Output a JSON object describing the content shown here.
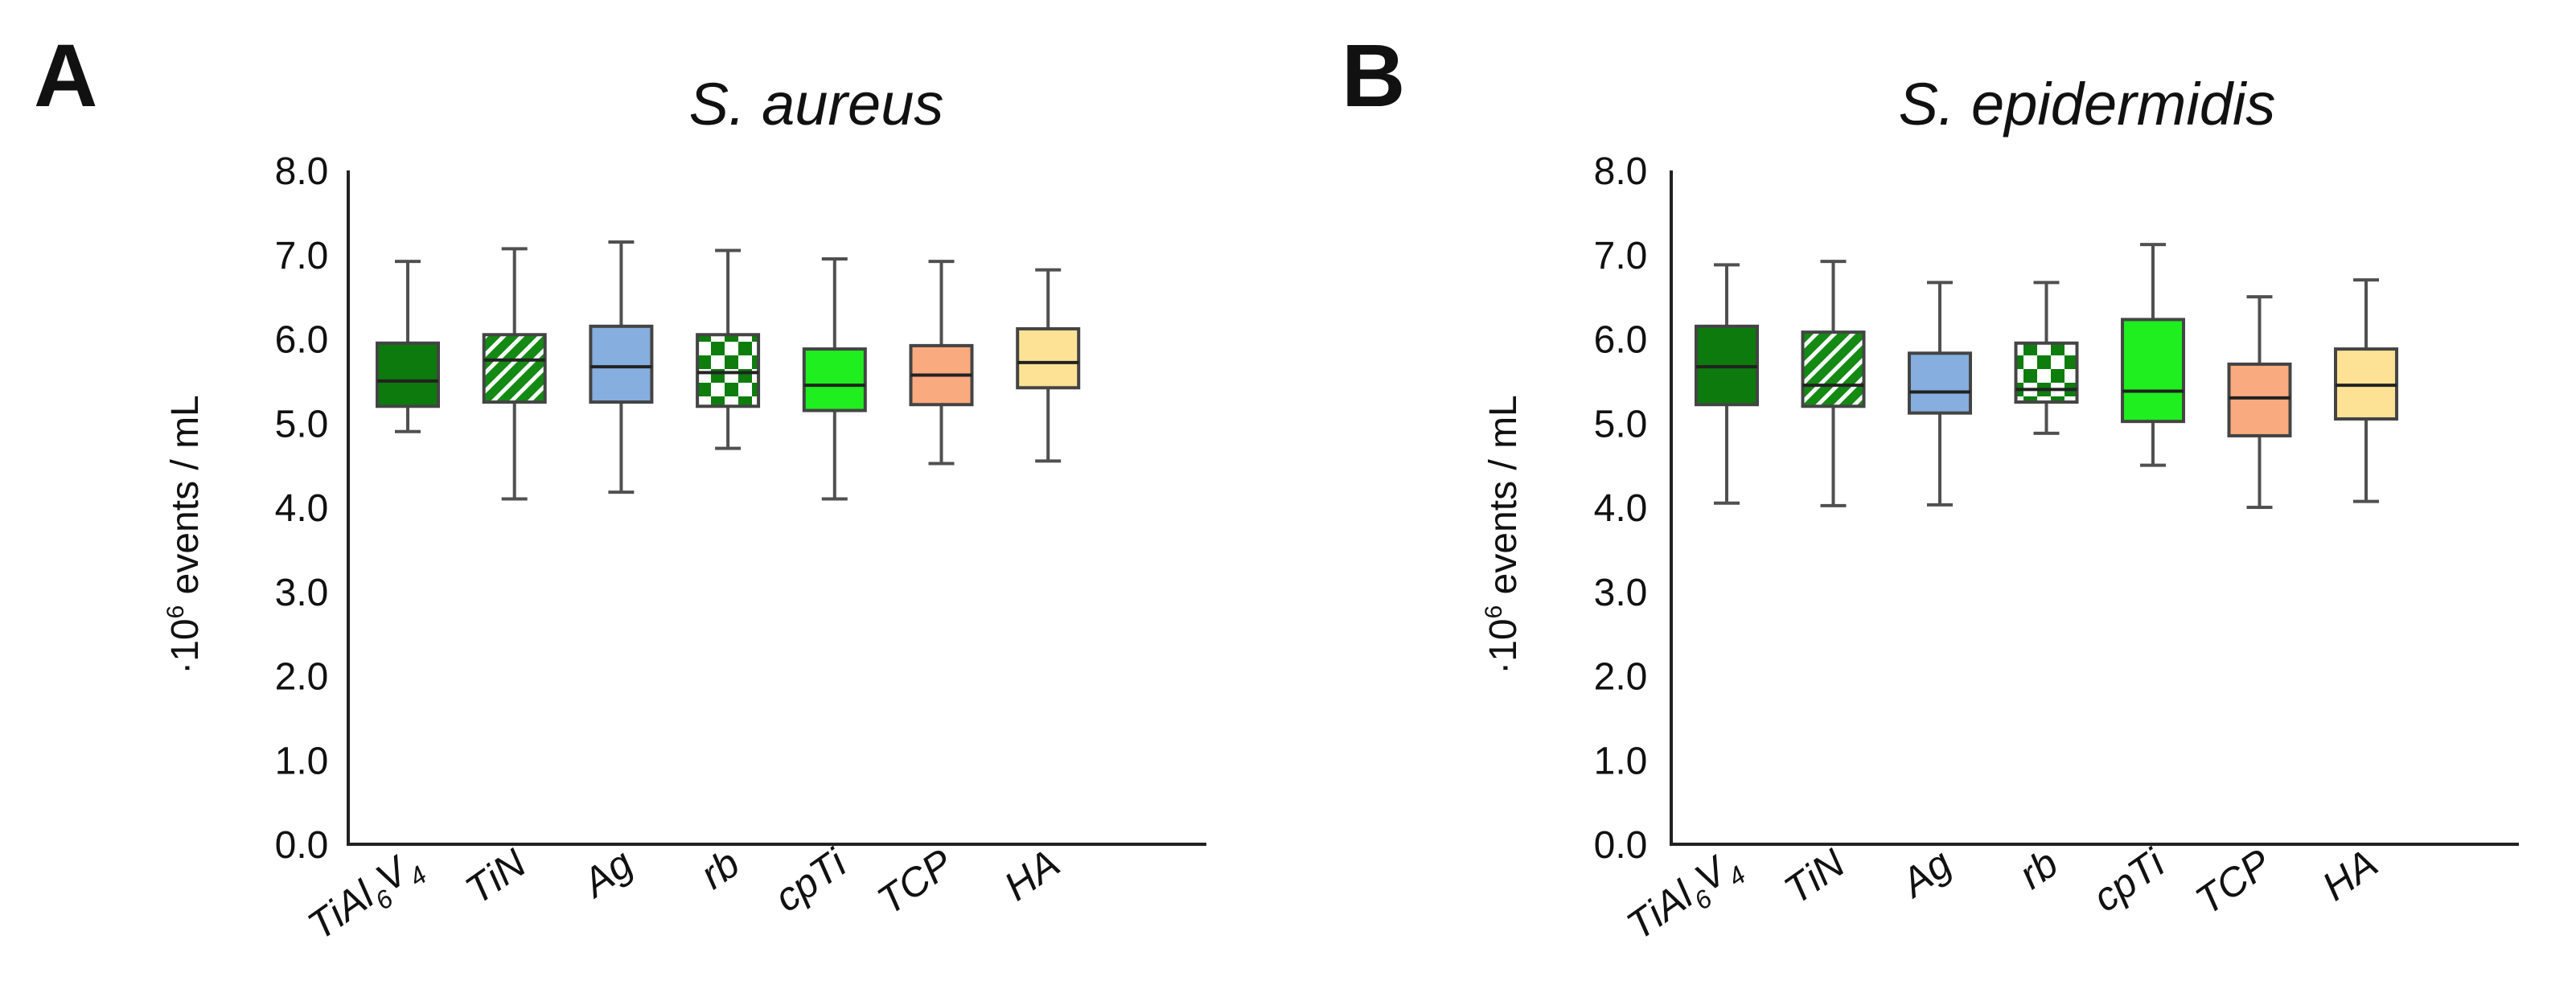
{
  "panels": [
    {
      "letter": "A"
    },
    {
      "letter": "B"
    }
  ],
  "chart_data": [
    {
      "type": "box",
      "panel": "A",
      "title": "S. aureus",
      "ylabel_prefix": "·10",
      "ylabel_sup": "6",
      "ylabel_suffix": " events / mL",
      "ylim": [
        0,
        8
      ],
      "yticks": [
        "0.0",
        "1.0",
        "2.0",
        "3.0",
        "4.0",
        "5.0",
        "6.0",
        "7.0",
        "8.0"
      ],
      "categories": [
        {
          "label": "TiAl",
          "sub": "6",
          "label2": "V",
          "sub2": "4"
        },
        {
          "label": "TiN"
        },
        {
          "label": "Ag"
        },
        {
          "label": "rb"
        },
        {
          "label": "cpTi"
        },
        {
          "label": "TCP"
        },
        {
          "label": "HA"
        }
      ],
      "boxes": [
        {
          "min": 4.9,
          "q1": 5.2,
          "median": 5.5,
          "q3": 5.95,
          "max": 6.92,
          "color": "#0d7a0d",
          "pattern": "solid"
        },
        {
          "min": 4.1,
          "q1": 5.25,
          "median": 5.75,
          "q3": 6.05,
          "max": 7.07,
          "color": "#148a14",
          "pattern": "diagonal"
        },
        {
          "min": 4.18,
          "q1": 5.25,
          "median": 5.67,
          "q3": 6.15,
          "max": 7.15,
          "color": "#86aede",
          "pattern": "solid"
        },
        {
          "min": 4.7,
          "q1": 5.2,
          "median": 5.6,
          "q3": 6.05,
          "max": 7.05,
          "color": "#0e7d0e",
          "pattern": "checker"
        },
        {
          "min": 4.1,
          "q1": 5.15,
          "median": 5.45,
          "q3": 5.88,
          "max": 6.95,
          "color": "#1fee1f",
          "pattern": "solid"
        },
        {
          "min": 4.52,
          "q1": 5.22,
          "median": 5.57,
          "q3": 5.92,
          "max": 6.92,
          "color": "#f9aa7f",
          "pattern": "solid"
        },
        {
          "min": 4.55,
          "q1": 5.42,
          "median": 5.72,
          "q3": 6.12,
          "max": 6.82,
          "color": "#fde296",
          "pattern": "solid"
        }
      ]
    },
    {
      "type": "box",
      "panel": "B",
      "title": "S. epidermidis",
      "ylabel_prefix": "·10",
      "ylabel_sup": "6",
      "ylabel_suffix": " events / mL",
      "ylim": [
        0,
        8
      ],
      "yticks": [
        "0.0",
        "1.0",
        "2.0",
        "3.0",
        "4.0",
        "5.0",
        "6.0",
        "7.0",
        "8.0"
      ],
      "categories": [
        {
          "label": "TiAl",
          "sub": "6",
          "label2": "V",
          "sub2": "4"
        },
        {
          "label": "TiN"
        },
        {
          "label": "Ag"
        },
        {
          "label": "rb"
        },
        {
          "label": "cpTi"
        },
        {
          "label": "TCP"
        },
        {
          "label": "HA"
        }
      ],
      "boxes": [
        {
          "min": 4.05,
          "q1": 5.22,
          "median": 5.67,
          "q3": 6.15,
          "max": 6.88,
          "color": "#0d7a0d",
          "pattern": "solid"
        },
        {
          "min": 4.02,
          "q1": 5.2,
          "median": 5.45,
          "q3": 6.08,
          "max": 6.92,
          "color": "#148a14",
          "pattern": "diagonal"
        },
        {
          "min": 4.03,
          "q1": 5.12,
          "median": 5.37,
          "q3": 5.83,
          "max": 6.67,
          "color": "#86aede",
          "pattern": "solid"
        },
        {
          "min": 4.88,
          "q1": 5.25,
          "median": 5.4,
          "q3": 5.95,
          "max": 6.67,
          "color": "#0e7d0e",
          "pattern": "checker"
        },
        {
          "min": 4.5,
          "q1": 5.02,
          "median": 5.38,
          "q3": 6.23,
          "max": 7.12,
          "color": "#1fee1f",
          "pattern": "solid"
        },
        {
          "min": 4.0,
          "q1": 4.85,
          "median": 5.3,
          "q3": 5.7,
          "max": 6.5,
          "color": "#f9aa7f",
          "pattern": "solid"
        },
        {
          "min": 4.07,
          "q1": 5.05,
          "median": 5.45,
          "q3": 5.88,
          "max": 6.7,
          "color": "#fde296",
          "pattern": "solid"
        }
      ]
    }
  ]
}
